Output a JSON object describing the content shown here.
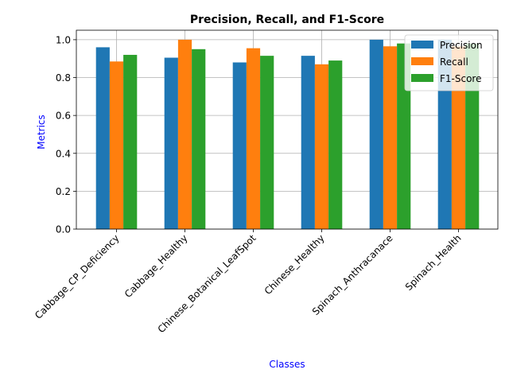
{
  "chart_data": {
    "type": "bar",
    "title": "Precision, Recall, and F1-Score",
    "xlabel": "Classes",
    "ylabel": "Metrics",
    "label_color": "#0000ff",
    "categories": [
      "Cabbage_CP_Deficiency",
      "Cabbage_Healthy",
      "Chinese_Botanical_LeafSpot",
      "Chinese_Healthy",
      "Spinach_Anthracanace",
      "Spinach_Health"
    ],
    "series": [
      {
        "name": "Precision",
        "color": "#1f77b4",
        "values": [
          0.96,
          0.905,
          0.88,
          0.915,
          1.0,
          1.0
        ]
      },
      {
        "name": "Recall",
        "color": "#ff7f0e",
        "values": [
          0.885,
          1.0,
          0.955,
          0.87,
          0.965,
          0.965
        ]
      },
      {
        "name": "F1-Score",
        "color": "#2ca02c",
        "values": [
          0.92,
          0.95,
          0.915,
          0.89,
          0.98,
          0.98
        ]
      }
    ],
    "ylim": [
      0,
      1.05
    ],
    "yticks": [
      "0.0",
      "0.2",
      "0.4",
      "0.6",
      "0.8",
      "1.0"
    ],
    "grid": true,
    "legend_position": "top-right"
  }
}
